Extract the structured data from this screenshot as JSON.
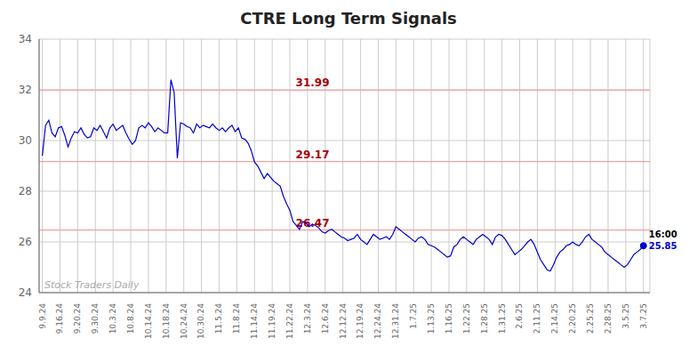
{
  "chart_data": {
    "type": "line",
    "title": "CTRE Long Term Signals",
    "x": [
      0,
      1,
      2,
      3,
      4,
      5,
      6,
      7,
      8,
      9,
      10,
      11,
      12,
      13,
      14,
      15,
      16,
      17,
      18,
      19,
      20,
      21,
      22,
      23,
      24,
      25,
      26,
      27,
      28,
      29,
      30,
      31,
      32,
      33,
      34,
      35,
      36,
      37,
      38,
      39,
      40,
      41,
      42,
      43,
      44,
      45,
      46,
      47,
      48,
      49,
      50,
      51,
      52,
      53,
      54,
      55,
      56,
      57,
      58,
      59,
      60,
      61,
      62,
      63,
      64,
      65,
      66,
      67,
      68,
      69,
      70,
      71,
      72,
      73,
      74,
      75,
      76,
      77,
      78,
      79,
      80,
      81,
      82,
      83,
      84,
      85,
      86,
      87,
      88,
      89,
      90,
      91,
      92,
      93,
      94,
      95,
      96,
      97,
      98,
      99,
      100,
      101,
      102,
      103,
      104,
      105,
      106,
      107,
      108,
      109,
      110,
      111,
      112,
      113,
      114,
      115,
      116,
      117,
      118,
      119,
      120,
      121,
      122,
      123,
      124,
      125,
      126,
      127,
      128,
      129,
      130,
      131,
      132,
      133,
      134,
      135,
      136,
      137,
      138,
      139,
      140,
      141,
      142,
      143,
      144,
      145,
      146,
      147,
      148,
      149,
      150,
      151,
      152,
      153,
      154,
      155,
      156,
      157,
      158,
      159,
      160,
      161,
      162,
      163,
      164,
      165,
      166,
      167,
      168,
      169,
      170,
      171,
      172,
      173,
      174,
      175,
      176,
      177,
      178,
      179,
      180,
      181,
      182,
      183,
      184,
      185,
      186,
      187
    ],
    "values": [
      29.4,
      30.6,
      30.8,
      30.3,
      30.15,
      30.5,
      30.55,
      30.2,
      29.75,
      30.1,
      30.35,
      30.3,
      30.5,
      30.25,
      30.1,
      30.15,
      30.5,
      30.4,
      30.6,
      30.35,
      30.1,
      30.5,
      30.65,
      30.4,
      30.5,
      30.6,
      30.3,
      30.05,
      29.85,
      30.0,
      30.5,
      30.6,
      30.5,
      30.7,
      30.55,
      30.35,
      30.5,
      30.4,
      30.3,
      30.3,
      32.4,
      31.9,
      29.3,
      30.7,
      30.65,
      30.55,
      30.5,
      30.3,
      30.65,
      30.5,
      30.6,
      30.55,
      30.5,
      30.65,
      30.5,
      30.4,
      30.5,
      30.35,
      30.5,
      30.6,
      30.35,
      30.5,
      30.1,
      30.05,
      29.9,
      29.6,
      29.15,
      29.0,
      28.75,
      28.5,
      28.7,
      28.55,
      28.4,
      28.3,
      28.2,
      27.8,
      27.5,
      27.25,
      26.8,
      26.65,
      26.5,
      26.8,
      26.75,
      26.6,
      26.7,
      26.65,
      26.55,
      26.4,
      26.35,
      26.45,
      26.5,
      26.4,
      26.3,
      26.2,
      26.15,
      26.05,
      26.1,
      26.15,
      26.3,
      26.1,
      26.0,
      25.9,
      26.1,
      26.3,
      26.2,
      26.1,
      26.15,
      26.2,
      26.1,
      26.3,
      26.6,
      26.5,
      26.4,
      26.3,
      26.2,
      26.1,
      26.0,
      26.15,
      26.2,
      26.1,
      25.9,
      25.85,
      25.8,
      25.7,
      25.6,
      25.5,
      25.4,
      25.45,
      25.8,
      25.9,
      26.1,
      26.2,
      26.1,
      26.0,
      25.9,
      26.1,
      26.2,
      26.3,
      26.2,
      26.1,
      25.9,
      26.2,
      26.3,
      26.25,
      26.1,
      25.9,
      25.7,
      25.5,
      25.6,
      25.7,
      25.85,
      26.0,
      26.1,
      25.9,
      25.6,
      25.3,
      25.1,
      24.9,
      24.85,
      25.1,
      25.4,
      25.6,
      25.7,
      25.85,
      25.9,
      26.0,
      25.9,
      25.85,
      26.0,
      26.2,
      26.3,
      26.1,
      26.0,
      25.9,
      25.8,
      25.6,
      25.5,
      25.4,
      25.3,
      25.2,
      25.1,
      25.0,
      25.1,
      25.3,
      25.5,
      25.6,
      25.7,
      25.85
    ],
    "color": "#0000cc",
    "xlim": [
      -1,
      189
    ],
    "xticks": [
      {
        "value": 0,
        "label": "9.9.24"
      },
      {
        "value": 5.5,
        "label": "9.16.24"
      },
      {
        "value": 11,
        "label": "9.20.24"
      },
      {
        "value": 16.5,
        "label": "9.30.24"
      },
      {
        "value": 22,
        "label": "10.3.24"
      },
      {
        "value": 27.5,
        "label": "10.8.24"
      },
      {
        "value": 33,
        "label": "10.14.24"
      },
      {
        "value": 38.5,
        "label": "10.18.24"
      },
      {
        "value": 44,
        "label": "10.24.24"
      },
      {
        "value": 49.5,
        "label": "10.30.24"
      },
      {
        "value": 55,
        "label": "11.5.24"
      },
      {
        "value": 60.5,
        "label": "11.8.24"
      },
      {
        "value": 66,
        "label": "11.14.24"
      },
      {
        "value": 71.5,
        "label": "11.19.24"
      },
      {
        "value": 77,
        "label": "11.22.24"
      },
      {
        "value": 82.5,
        "label": "12.3.24"
      },
      {
        "value": 88,
        "label": "12.6.24"
      },
      {
        "value": 93.5,
        "label": "12.12.24"
      },
      {
        "value": 99,
        "label": "12.19.24"
      },
      {
        "value": 104.5,
        "label": "12.24.24"
      },
      {
        "value": 110,
        "label": "12.31.24"
      },
      {
        "value": 115.5,
        "label": "1.7.25"
      },
      {
        "value": 121,
        "label": "1.13.25"
      },
      {
        "value": 126.5,
        "label": "1.16.25"
      },
      {
        "value": 132,
        "label": "1.22.25"
      },
      {
        "value": 137.5,
        "label": "1.28.25"
      },
      {
        "value": 143,
        "label": "1.31.25"
      },
      {
        "value": 148.5,
        "label": "2.6.25"
      },
      {
        "value": 154,
        "label": "2.11.25"
      },
      {
        "value": 159.5,
        "label": "2.14.25"
      },
      {
        "value": 165,
        "label": "2.20.25"
      },
      {
        "value": 170.5,
        "label": "2.25.25"
      },
      {
        "value": 176,
        "label": "2.28.25"
      },
      {
        "value": 181.5,
        "label": "3.5.25"
      },
      {
        "value": 187,
        "label": "3.7.25"
      }
    ],
    "ylim": [
      24,
      34
    ],
    "yticks": [
      24,
      26,
      28,
      30,
      32,
      34
    ],
    "grid": true,
    "grid_color": "#cccccc",
    "hlines": [
      {
        "value": 31.99,
        "label": "31.99"
      },
      {
        "value": 29.17,
        "label": "29.17"
      },
      {
        "value": 26.47,
        "label": "26.47"
      }
    ],
    "hline_color": "#f5a0a0",
    "hline_label_color": "#aa0000",
    "annotations": [
      "16:00"
    ],
    "last_price": 25.85,
    "watermark": "Stock Traders Daily",
    "watermark_color": "#aaaaaa"
  }
}
